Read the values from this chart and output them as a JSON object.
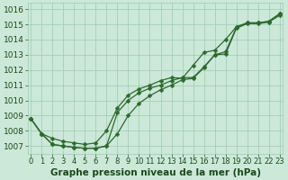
{
  "title": "Graphe pression niveau de la mer (hPa)",
  "xlabel_hours": [
    0,
    1,
    2,
    3,
    4,
    5,
    6,
    7,
    8,
    9,
    10,
    11,
    12,
    13,
    14,
    15,
    16,
    17,
    18,
    19,
    20,
    21,
    22,
    23
  ],
  "line1": [
    1008.8,
    1007.8,
    1007.1,
    1007.0,
    1006.9,
    1006.85,
    1006.85,
    1007.0,
    1007.8,
    1009.0,
    1009.8,
    1010.3,
    1010.7,
    1011.0,
    1011.35,
    1011.45,
    1012.15,
    1013.0,
    1013.05,
    1014.75,
    1015.05,
    1015.05,
    1015.15,
    1015.6
  ],
  "line2": [
    1008.8,
    1007.8,
    1007.5,
    1007.3,
    1007.2,
    1007.1,
    1007.2,
    1008.0,
    1009.5,
    1010.35,
    1010.75,
    1011.0,
    1011.3,
    1011.5,
    1011.45,
    1012.3,
    1013.15,
    1013.3,
    1014.0,
    1014.85,
    1015.1,
    1015.1,
    1015.2,
    1015.7
  ],
  "line3": [
    1008.8,
    1007.8,
    1007.1,
    1007.0,
    1006.9,
    1006.85,
    1006.85,
    1007.0,
    1009.2,
    1010.0,
    1010.5,
    1010.8,
    1011.0,
    1011.3,
    1011.5,
    1011.5,
    1012.2,
    1013.0,
    1013.2,
    1014.8,
    1015.1,
    1015.1,
    1015.2,
    1015.7
  ],
  "line_color": "#2d6a2d",
  "bg_color": "#cce8d8",
  "grid_color": "#99ccb0",
  "text_color": "#1a4a1a",
  "ylim_min": 1006.5,
  "ylim_max": 1016.4,
  "yticks": [
    1007,
    1008,
    1009,
    1010,
    1011,
    1012,
    1013,
    1014,
    1015,
    1016
  ],
  "font_size": 6.5,
  "xlabel_fontsize": 7.5,
  "marker_size": 2.5,
  "linewidth": 0.9
}
